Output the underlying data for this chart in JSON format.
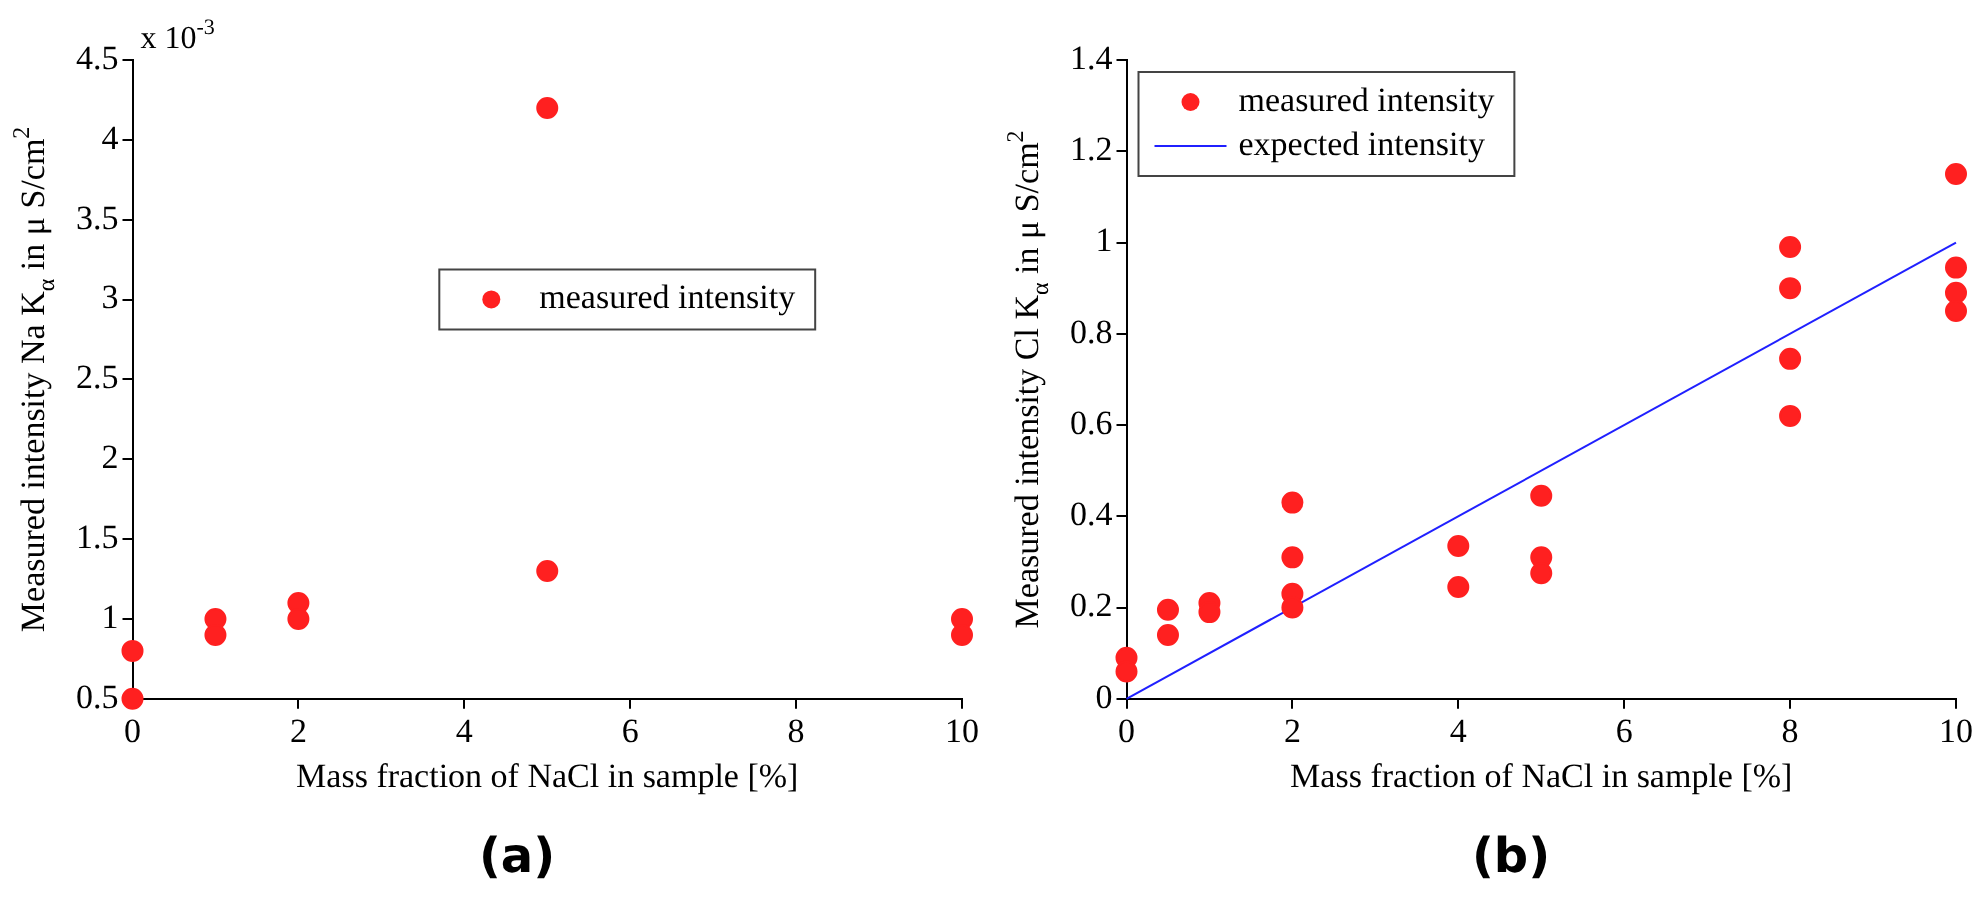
{
  "chart_data": [
    {
      "type": "scatter",
      "title": "(a)",
      "xlabel": "Mass fraction of NaCl in sample [%]",
      "ylabel": "Measured intensity Na K$_{α}$ in μ S/cm$^{2}$",
      "annotations": [
        "x 10$^{-3}$"
      ],
      "series": [
        {
          "name": "measured intensity",
          "color": "#ff2020",
          "x": [
            0,
            0,
            1,
            1,
            2,
            2,
            5,
            5,
            10,
            10
          ],
          "values": [
            0.8,
            0.5,
            1.0,
            0.9,
            1.1,
            1.0,
            4.2,
            1.3,
            1.0,
            0.9
          ]
        }
      ],
      "xlim": [
        0,
        10
      ],
      "xticks": [
        0,
        2,
        4,
        6,
        8,
        10
      ],
      "ylim": [
        0.5,
        4.5
      ],
      "yticks": [
        0.5,
        1,
        1.5,
        2,
        2.5,
        3,
        3.5,
        4,
        4.5
      ],
      "grid": false,
      "legend": "center",
      "marker": "circle"
    },
    {
      "type": "scatter",
      "title": "(b)",
      "xlabel": "Mass fraction of NaCl in sample [%]",
      "ylabel": "Measured intensity Cl K$_{α}$ in μ S/cm$^{2}$",
      "series": [
        {
          "name": "measured intensity",
          "color": "#ff2020",
          "x": [
            0,
            0,
            0.5,
            0.5,
            1,
            1,
            2,
            2,
            2,
            2,
            4,
            4,
            5,
            5,
            5,
            8,
            8,
            8,
            8,
            10,
            10,
            10,
            10
          ],
          "values": [
            0.09,
            0.06,
            0.195,
            0.14,
            0.21,
            0.19,
            0.43,
            0.31,
            0.23,
            0.2,
            0.335,
            0.245,
            0.445,
            0.31,
            0.275,
            0.99,
            0.9,
            0.745,
            0.62,
            1.15,
            0.945,
            0.89,
            0.85
          ]
        },
        {
          "name": "expected intensity",
          "type": "line",
          "marker": "none",
          "color": "#2020ff",
          "x": [
            0,
            10
          ],
          "values": [
            0,
            1
          ]
        }
      ],
      "xlim": [
        0,
        10
      ],
      "xticks": [
        0,
        2,
        4,
        6,
        8,
        10
      ],
      "ylim": [
        0,
        1.4
      ],
      "yticks": [
        0,
        0.2,
        0.4,
        0.6,
        0.8,
        1,
        1.2,
        1.4
      ],
      "grid": false,
      "legend": "top left",
      "marker": "circle"
    }
  ]
}
